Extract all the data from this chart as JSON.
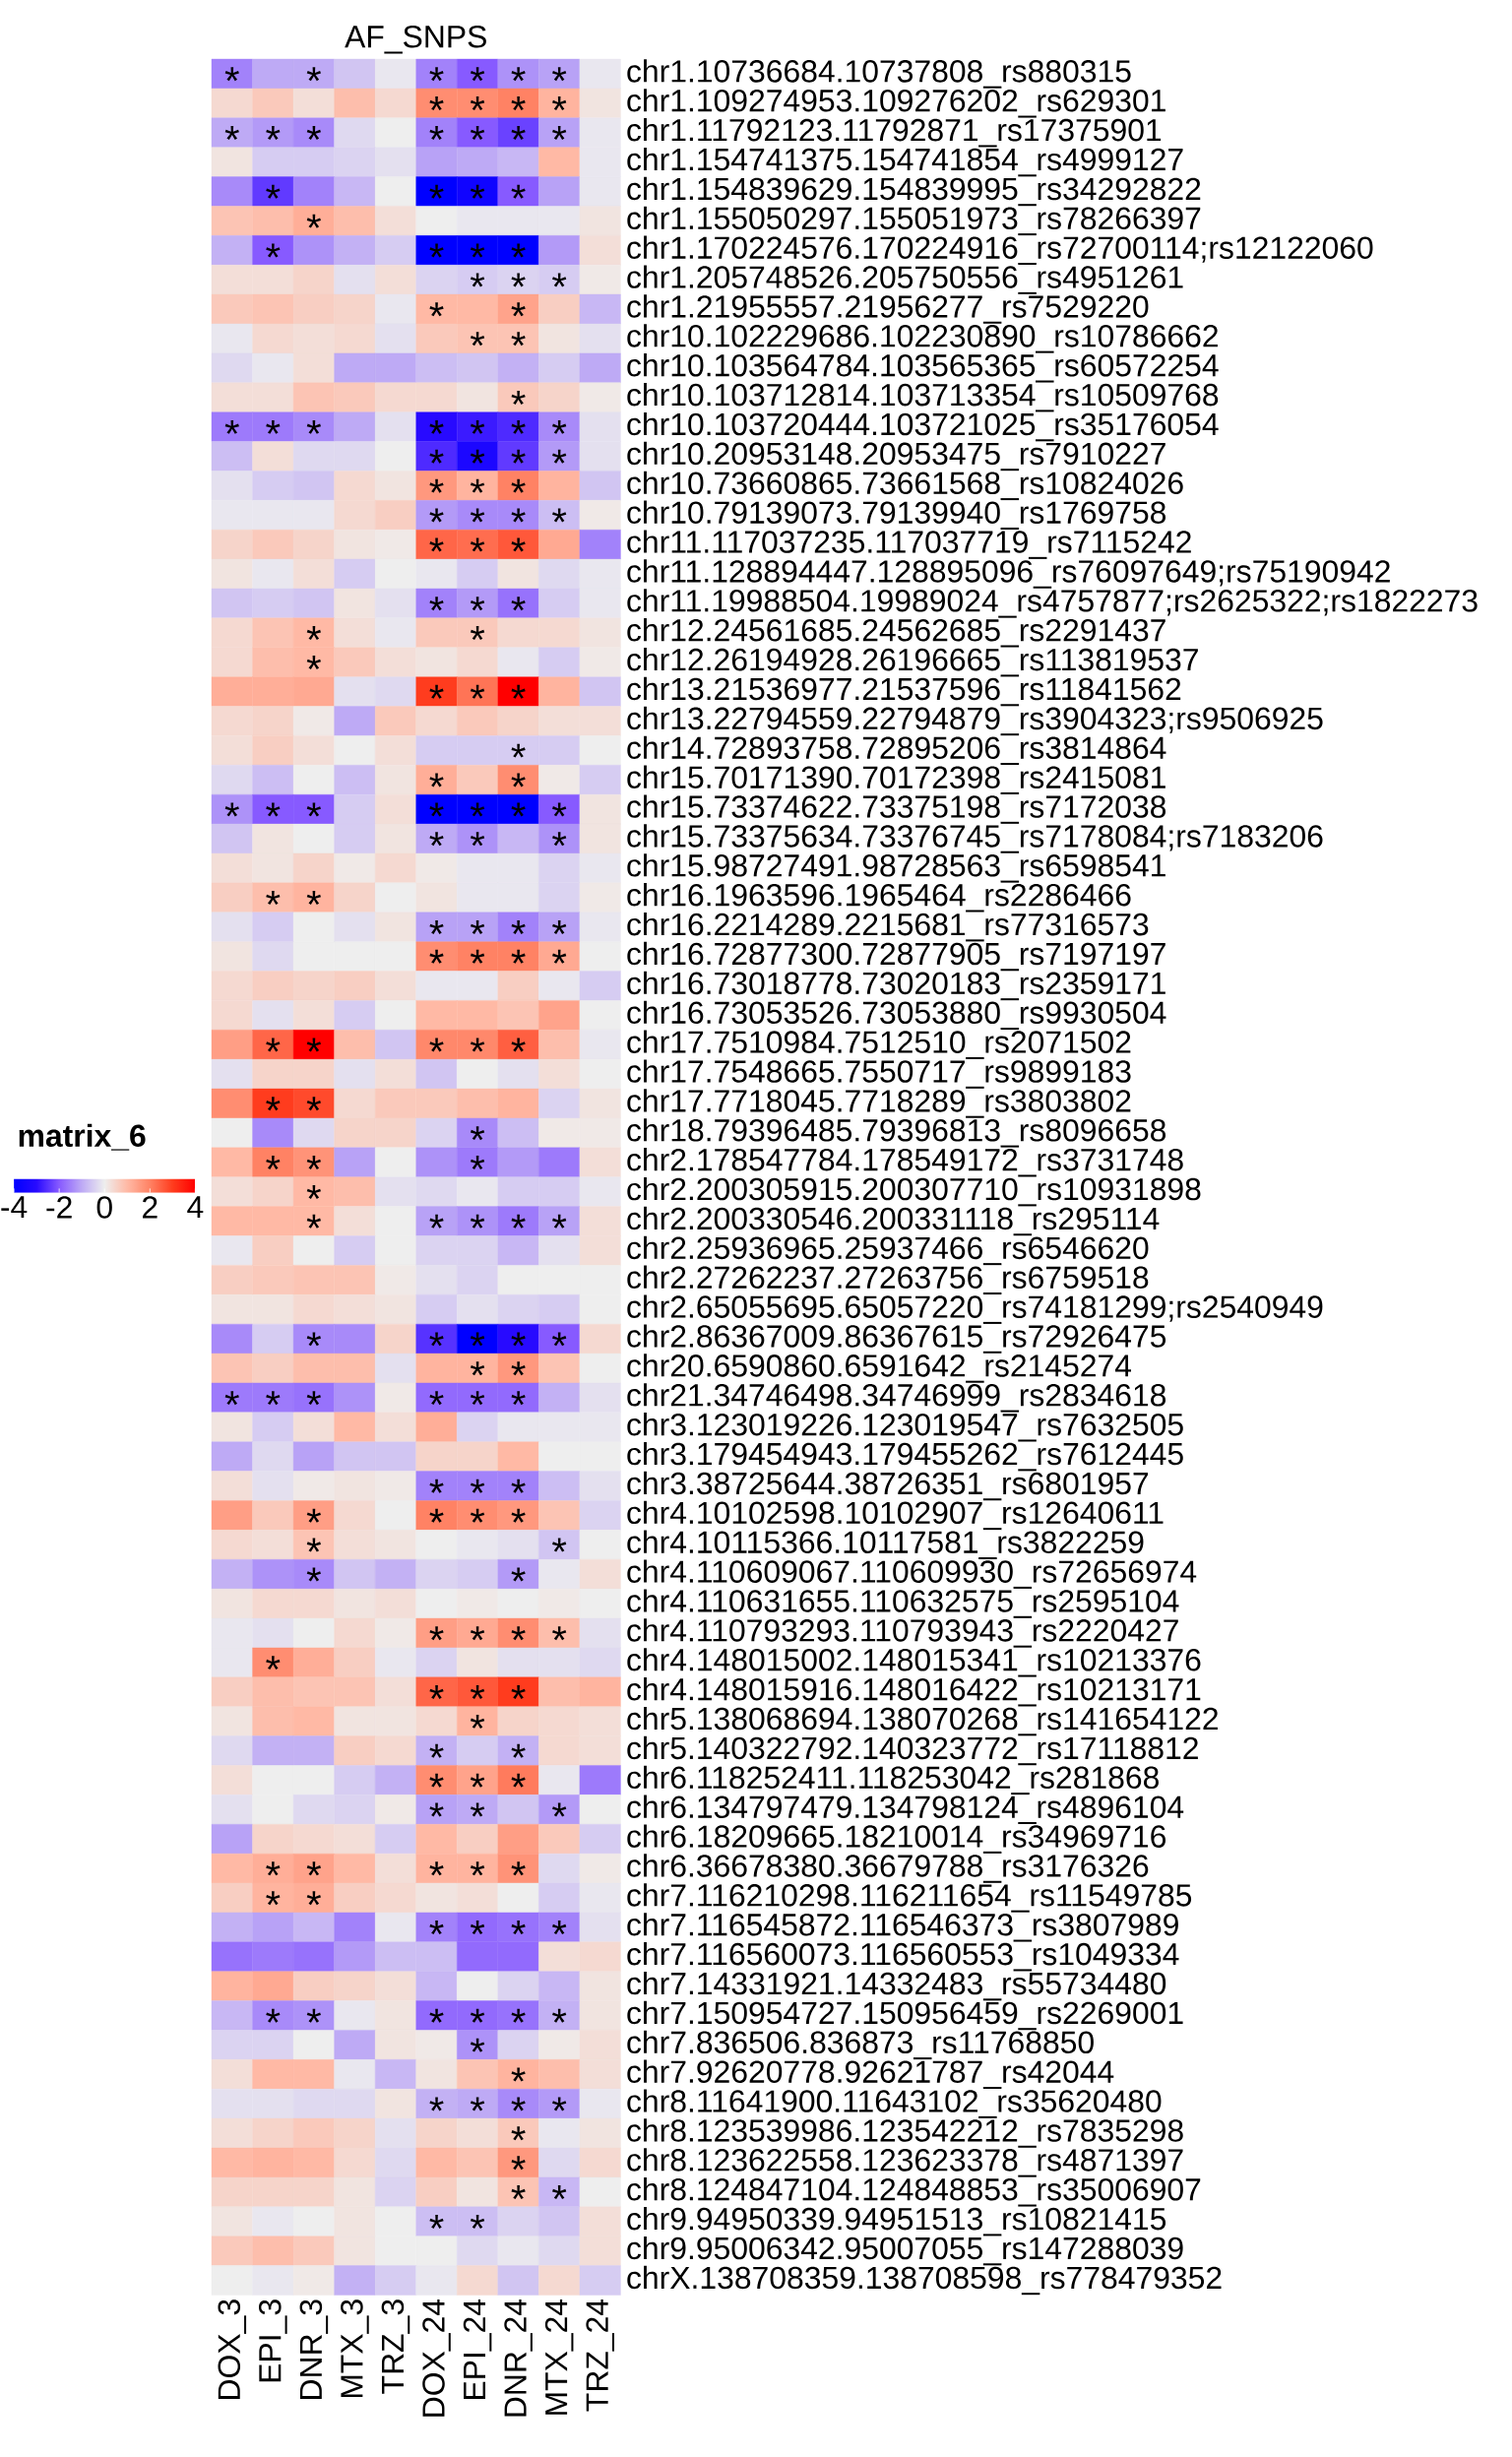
{
  "chart_data": {
    "type": "heatmap",
    "title": "AF_SNPS",
    "clabel": "matrix_6",
    "categories": [
      "DOX_3",
      "EPI_3",
      "DNR_3",
      "MTX_3",
      "TRZ_3",
      "DOX_24",
      "EPI_24",
      "DNR_24",
      "MTX_24",
      "TRZ_24"
    ],
    "y_categories": [
      "chr1.10736684.10737808_rs880315",
      "chr1.109274953.109276202_rs629301",
      "chr1.11792123.11792871_rs17375901",
      "chr1.154741375.154741854_rs4999127",
      "chr1.154839629.154839995_rs34292822",
      "chr1.155050297.155051973_rs78266397",
      "chr1.170224576.170224916_rs72700114;rs12122060",
      "chr1.205748526.205750556_rs4951261",
      "chr1.21955557.21956277_rs7529220",
      "chr10.102229686.102230890_rs10786662",
      "chr10.103564784.103565365_rs60572254",
      "chr10.103712814.103713354_rs10509768",
      "chr10.103720444.103721025_rs35176054",
      "chr10.20953148.20953475_rs7910227",
      "chr10.73660865.73661568_rs10824026",
      "chr10.79139073.79139940_rs1769758",
      "chr11.117037235.117037719_rs7115242",
      "chr11.128894447.128895096_rs76097649;rs75190942",
      "chr11.19988504.19989024_rs4757877;rs2625322;rs1822273",
      "chr12.24561685.24562685_rs2291437",
      "chr12.26194928.26196665_rs113819537",
      "chr13.21536977.21537596_rs11841562",
      "chr13.22794559.22794879_rs3904323;rs9506925",
      "chr14.72893758.72895206_rs3814864",
      "chr15.70171390.70172398_rs2415081",
      "chr15.73374622.73375198_rs7172038",
      "chr15.73375634.73376745_rs7178084;rs7183206",
      "chr15.98727491.98728563_rs6598541",
      "chr16.1963596.1965464_rs2286466",
      "chr16.2214289.2215681_rs77316573",
      "chr16.72877300.72877905_rs7197197",
      "chr16.73018778.73020183_rs2359171",
      "chr16.73053526.73053880_rs9930504",
      "chr17.7510984.7512510_rs2071502",
      "chr17.7548665.7550717_rs9899183",
      "chr17.7718045.7718289_rs3803802",
      "chr18.79396485.79396813_rs8096658",
      "chr2.178547784.178549172_rs3731748",
      "chr2.200305915.200307710_rs10931898",
      "chr2.200330546.200331118_rs295114",
      "chr2.25936965.25937466_rs6546620",
      "chr2.27262237.27263756_rs6759518",
      "chr2.65055695.65057220_rs74181299;rs2540949",
      "chr2.86367009.86367615_rs72926475",
      "chr20.6590860.6591642_rs2145274",
      "chr21.34746498.34746999_rs2834618",
      "chr3.123019226.123019547_rs7632505",
      "chr3.179454943.179455262_rs7612445",
      "chr3.38725644.38726351_rs6801957",
      "chr4.10102598.10102907_rs12640611",
      "chr4.10115366.10117581_rs3822259",
      "chr4.110609067.110609930_rs72656974",
      "chr4.110631655.110632575_rs2595104",
      "chr4.110793293.110793943_rs2220427",
      "chr4.148015002.148015341_rs10213376",
      "chr4.148015916.148016422_rs10213171",
      "chr5.138068694.138070268_rs141654122",
      "chr5.140322792.140323772_rs17118812",
      "chr6.118252411.118253042_rs281868",
      "chr6.134797479.134798124_rs4896104",
      "chr6.18209665.18210014_rs34969716",
      "chr6.36678380.36679788_rs3176326",
      "chr7.116210298.116211654_rs11549785",
      "chr7.116545872.116546373_rs3807989",
      "chr7.116560073.116560553_rs1049334",
      "chr7.14331921.14332483_rs55734480",
      "chr7.150954727.150956459_rs2269001",
      "chr7.836506.836873_rs11768850",
      "chr7.92620778.92621787_rs42044",
      "chr8.11641900.11643102_rs35620480",
      "chr8.123539986.123542212_rs7835298",
      "chr8.123622558.123623378_rs4871397",
      "chr8.124847104.124848853_rs35006907",
      "chr9.94950339.94951513_rs10821415",
      "chr9.95006342.95007055_rs147288039",
      "chrX.138708359.138708598_rs778479352"
    ],
    "cells": [
      [
        -1.5,
        -1,
        -1,
        -0.6,
        -0.1,
        -1.5,
        -2,
        -1.3,
        -1.1,
        -0.1
      ],
      [
        0.4,
        0.7,
        0.3,
        0.9,
        0.4,
        1.8,
        1.8,
        2,
        1.1,
        0.2
      ],
      [
        -1,
        -1.2,
        -1.4,
        -0.3,
        0,
        -1.5,
        -2,
        -2.3,
        -1.1,
        -0.1
      ],
      [
        0.2,
        -0.5,
        -0.5,
        -0.4,
        -0.2,
        -1.1,
        -1,
        -0.8,
        1,
        -0.1
      ],
      [
        -1.4,
        -2.4,
        -1.5,
        -0.8,
        0,
        -4,
        -3.6,
        -2,
        -1.1,
        -0.1
      ],
      [
        0.8,
        0.9,
        1.2,
        0.9,
        0.3,
        0,
        -0.1,
        -0.1,
        -0.1,
        0.2
      ],
      [
        -0.9,
        -2,
        -1.3,
        -0.9,
        -0.5,
        -4,
        -4,
        -4,
        -1.2,
        0.3
      ],
      [
        0.3,
        0.3,
        0.5,
        -0.2,
        0.3,
        -0.4,
        -0.5,
        -0.4,
        -0.5,
        0.1
      ],
      [
        0.7,
        0.8,
        0.6,
        0.5,
        -0.1,
        1,
        1,
        1.4,
        0.6,
        -0.8
      ],
      [
        -0.1,
        0.4,
        0.3,
        0.4,
        -0.2,
        0.7,
        0.8,
        0.8,
        0.2,
        -0.2
      ],
      [
        -0.3,
        -0.1,
        0.3,
        -1,
        -1,
        -0.7,
        -0.6,
        -0.9,
        -0.5,
        -1
      ],
      [
        0.3,
        0.3,
        0.8,
        0.7,
        0.4,
        0.4,
        0.2,
        0.7,
        0.5,
        0.1
      ],
      [
        -1.6,
        -1.6,
        -1.4,
        -1,
        -0.2,
        -3,
        -2.8,
        -2.6,
        -1.4,
        -0.2
      ],
      [
        -0.7,
        0.3,
        -0.3,
        -0.3,
        0,
        -2.6,
        -3.3,
        -2.4,
        -1.2,
        -0.2
      ],
      [
        -0.2,
        -0.5,
        -0.6,
        0.4,
        0.2,
        1.6,
        1.1,
        2,
        1.1,
        -0.6
      ],
      [
        -0.1,
        -0.1,
        -0.1,
        0.4,
        0.6,
        -1.2,
        -1.4,
        -1.4,
        -0.7,
        0.1
      ],
      [
        0.5,
        0.7,
        0.5,
        0.2,
        0.1,
        2.4,
        2.3,
        2.6,
        1.3,
        -1.5
      ],
      [
        0.2,
        -0.1,
        0.3,
        -0.5,
        0,
        -0.1,
        -0.5,
        0.2,
        -0.3,
        -0.1
      ],
      [
        -0.6,
        -0.5,
        -0.6,
        0.2,
        -0.2,
        -1.5,
        -1.2,
        -1.7,
        -0.5,
        -0.1
      ],
      [
        0.4,
        0.8,
        1,
        0.3,
        -0.1,
        0.7,
        0.7,
        0.4,
        0.4,
        0.2
      ],
      [
        0.4,
        0.9,
        1,
        0.7,
        0.3,
        0.2,
        0.4,
        -0.1,
        -0.5,
        0.1
      ],
      [
        1.2,
        1.2,
        1.3,
        -0.2,
        -0.3,
        3,
        2.2,
        4,
        1.1,
        -0.6
      ],
      [
        0.4,
        0.5,
        0.1,
        -1,
        0.7,
        0.4,
        0.7,
        0.5,
        0.3,
        0.3
      ],
      [
        0.3,
        0.6,
        0.3,
        0,
        0.3,
        -0.5,
        -0.5,
        -0.5,
        -0.5,
        0
      ],
      [
        -0.3,
        -0.7,
        0,
        -0.7,
        0.2,
        1.2,
        0.7,
        1.8,
        0.1,
        -0.5
      ],
      [
        -1.3,
        -2,
        -2,
        -0.5,
        0.3,
        -4,
        -4,
        -4,
        -2,
        0.2
      ],
      [
        -0.6,
        0.2,
        0,
        -0.5,
        0.2,
        -1,
        -1.3,
        -0.8,
        -1.3,
        0.2
      ],
      [
        0.3,
        0.2,
        0.5,
        0.1,
        0.4,
        0.1,
        -0.1,
        -0.1,
        -0.4,
        -0.1
      ],
      [
        0.6,
        0.9,
        1.1,
        0.5,
        0,
        0.2,
        -0.1,
        -0.1,
        -0.4,
        0.1
      ],
      [
        -0.2,
        -0.5,
        0,
        -0.2,
        0.2,
        -1.1,
        -1.1,
        -1.5,
        -1.1,
        -0.1
      ],
      [
        0.2,
        -0.3,
        0,
        0,
        0,
        1.8,
        2,
        2,
        1.3,
        0
      ],
      [
        0.4,
        0.6,
        0.5,
        0.6,
        0.3,
        -0.1,
        -0.1,
        0.6,
        -0.1,
        -0.5
      ],
      [
        0.4,
        -0.2,
        0.3,
        -0.5,
        0,
        1,
        1,
        0.8,
        1.4,
        0
      ],
      [
        1.5,
        2.4,
        4,
        0.9,
        -0.6,
        1.9,
        1.9,
        2.5,
        0.9,
        -0.1
      ],
      [
        -0.2,
        0.5,
        0.5,
        -0.2,
        0.3,
        -0.6,
        0,
        -0.2,
        0.3,
        0
      ],
      [
        1.8,
        3,
        2.8,
        0.4,
        0.7,
        0.7,
        0.9,
        1.1,
        -0.4,
        0.2
      ],
      [
        0,
        -1.4,
        -0.3,
        0.5,
        0.5,
        -0.4,
        -1.4,
        -0.7,
        0.1,
        0.1
      ],
      [
        1,
        2,
        1.7,
        -1.1,
        0,
        -1.3,
        -1.6,
        -1.2,
        -1.6,
        0.3
      ],
      [
        0.3,
        0.5,
        1,
        0.9,
        -0.2,
        -0.3,
        -0.1,
        -0.5,
        -0.5,
        -0.1
      ],
      [
        1,
        1,
        1,
        0.3,
        0,
        -1.1,
        -1.3,
        -1.6,
        -1.1,
        0.3
      ],
      [
        -0.1,
        0.6,
        0,
        -0.5,
        0,
        -0.4,
        -0.4,
        -0.8,
        -0.2,
        0.3
      ],
      [
        0.6,
        0.7,
        0.8,
        0.8,
        0.1,
        -0.2,
        -0.4,
        0,
        0,
        0
      ],
      [
        0.2,
        0.2,
        0.4,
        0.3,
        0.2,
        -0.5,
        -0.2,
        -0.4,
        -0.5,
        0
      ],
      [
        -1.4,
        -0.5,
        -1.4,
        -1.4,
        0.5,
        -2.5,
        -4,
        -3,
        -2,
        0.4
      ],
      [
        0.8,
        0.6,
        0.9,
        0.9,
        -0.2,
        1.1,
        1.1,
        1.6,
        0.8,
        0
      ],
      [
        -1.6,
        -1.6,
        -1.7,
        -1.3,
        0.1,
        -1.8,
        -1.8,
        -1.8,
        -0.9,
        -0.2
      ],
      [
        0.2,
        -0.5,
        0.3,
        1,
        0.3,
        1.2,
        -0.4,
        -0.1,
        -0.1,
        -0.1
      ],
      [
        -1,
        -0.3,
        -1.1,
        -0.6,
        -0.6,
        0.5,
        0.5,
        1,
        0,
        0
      ],
      [
        0.3,
        -0.2,
        0.1,
        0.2,
        0.1,
        -1.5,
        -1.5,
        -1.5,
        -0.7,
        -0.2
      ],
      [
        1.5,
        0.7,
        1.5,
        0.4,
        0,
        2,
        1.8,
        1.6,
        0.8,
        -0.4
      ],
      [
        0.4,
        0.3,
        0.8,
        0.3,
        0.2,
        0,
        -0.1,
        -0.2,
        -0.6,
        0
      ],
      [
        -0.9,
        -1.3,
        -1.4,
        -0.6,
        -0.9,
        -0.4,
        -0.5,
        -1.2,
        -0.1,
        0.3
      ],
      [
        0.2,
        0.4,
        0.4,
        0.2,
        0.3,
        0,
        0.1,
        0,
        0.1,
        0
      ],
      [
        -0.1,
        -0.2,
        0,
        0.4,
        0.1,
        1.5,
        1.3,
        1.8,
        0.9,
        -0.2
      ],
      [
        -0.1,
        1.8,
        1.2,
        0.6,
        -0.1,
        -0.4,
        0.2,
        -0.2,
        -0.2,
        -0.3
      ],
      [
        0.6,
        0.9,
        0.8,
        0.8,
        0.3,
        2.4,
        2.6,
        3,
        0.9,
        1.1
      ],
      [
        0.2,
        0.9,
        1,
        0.2,
        0.2,
        0.4,
        1.1,
        0.5,
        0.4,
        0.3
      ],
      [
        -0.3,
        -0.9,
        -0.9,
        0.6,
        0.4,
        -0.9,
        -0.5,
        -0.9,
        0.4,
        0.3
      ],
      [
        0.3,
        0,
        0,
        -0.5,
        -0.9,
        1.8,
        1.4,
        2.1,
        -0.1,
        -1.6
      ],
      [
        -0.2,
        0,
        -0.3,
        -0.4,
        0.1,
        -1.1,
        -1,
        -0.6,
        -1.2,
        0
      ],
      [
        -1.1,
        0.5,
        0.4,
        0.3,
        -0.5,
        1,
        0.6,
        1.5,
        0.7,
        -0.5
      ],
      [
        1,
        1.2,
        1.4,
        1,
        0.3,
        1.1,
        1.1,
        1.7,
        -0.3,
        0.1
      ],
      [
        0.6,
        1.1,
        1.2,
        0.6,
        0.4,
        0.2,
        0.3,
        0,
        -0.5,
        -0.1
      ],
      [
        -0.9,
        -1.1,
        -0.8,
        -1.5,
        -0.1,
        -1.5,
        -1.8,
        -1.7,
        -1.5,
        -0.2
      ],
      [
        -1.7,
        -1.6,
        -1.7,
        -1.2,
        -0.7,
        -0.7,
        -1.8,
        -1.8,
        0.3,
        0.4
      ],
      [
        1.1,
        1.3,
        0.6,
        0.5,
        0.3,
        -0.8,
        0,
        -0.4,
        -0.8,
        0.2
      ],
      [
        -0.8,
        -1.4,
        -1.3,
        -0.1,
        0.2,
        -1.8,
        -1.8,
        -1.7,
        -0.9,
        0.2
      ],
      [
        -0.4,
        -0.4,
        0,
        -1,
        0.2,
        0.1,
        -1.3,
        -0.4,
        0.1,
        0.3
      ],
      [
        0.3,
        1,
        1,
        -0.1,
        -0.8,
        0.2,
        0.8,
        1.1,
        0.9,
        0.3
      ],
      [
        -0.2,
        -0.2,
        -0.3,
        -0.3,
        0.2,
        -0.9,
        -1,
        -1.4,
        -1.2,
        -0.1
      ],
      [
        0.3,
        0.5,
        0.7,
        0.5,
        -0.2,
        0.5,
        0.3,
        0.7,
        -0.1,
        0.2
      ],
      [
        1,
        1.1,
        1,
        0.4,
        -0.3,
        1,
        0.8,
        1.6,
        -0.3,
        0.4
      ],
      [
        0.5,
        0.5,
        0.5,
        0.2,
        -0.4,
        0.6,
        0.2,
        0.8,
        -0.8,
        0
      ],
      [
        0.2,
        -0.1,
        0,
        0.2,
        0,
        -0.7,
        -0.7,
        -0.4,
        -0.6,
        0.3
      ],
      [
        0.7,
        0.9,
        0.7,
        0.2,
        0,
        0,
        -0.3,
        -0.1,
        -0.3,
        0.3
      ],
      [
        0,
        -0.1,
        0.1,
        -0.9,
        -0.5,
        -0.1,
        0.4,
        -0.6,
        0.4,
        -0.5
      ]
    ],
    "cell_labels": [
      [
        "*",
        null,
        "*",
        null,
        null,
        "*",
        "*",
        "*",
        "*",
        null
      ],
      [
        null,
        null,
        null,
        null,
        null,
        "*",
        "*",
        "*",
        "*",
        null
      ],
      [
        "*",
        "*",
        "*",
        null,
        null,
        "*",
        "*",
        "*",
        "*",
        null
      ],
      [
        null,
        null,
        null,
        null,
        null,
        null,
        null,
        null,
        null,
        null
      ],
      [
        null,
        "*",
        null,
        null,
        null,
        "*",
        "*",
        "*",
        null,
        null
      ],
      [
        null,
        null,
        "*",
        null,
        null,
        null,
        null,
        null,
        null,
        null
      ],
      [
        null,
        "*",
        null,
        null,
        null,
        "*",
        "*",
        "*",
        null,
        null
      ],
      [
        null,
        null,
        null,
        null,
        null,
        null,
        "*",
        "*",
        "*",
        null
      ],
      [
        null,
        null,
        null,
        null,
        null,
        "*",
        null,
        "*",
        null,
        null
      ],
      [
        null,
        null,
        null,
        null,
        null,
        null,
        "*",
        "*",
        null,
        null
      ],
      [
        null,
        null,
        null,
        null,
        null,
        null,
        null,
        null,
        null,
        null
      ],
      [
        null,
        null,
        null,
        null,
        null,
        null,
        null,
        "*",
        null,
        null
      ],
      [
        "*",
        "*",
        "*",
        null,
        null,
        "*",
        "*",
        "*",
        "*",
        null
      ],
      [
        null,
        null,
        null,
        null,
        null,
        "*",
        "*",
        "*",
        "*",
        null
      ],
      [
        null,
        null,
        null,
        null,
        null,
        "*",
        "*",
        "*",
        null,
        null
      ],
      [
        null,
        null,
        null,
        null,
        null,
        "*",
        "*",
        "*",
        "*",
        null
      ],
      [
        null,
        null,
        null,
        null,
        null,
        "*",
        "*",
        "*",
        null,
        null
      ],
      [
        null,
        null,
        null,
        null,
        null,
        null,
        null,
        null,
        null,
        null
      ],
      [
        null,
        null,
        null,
        null,
        null,
        "*",
        "*",
        "*",
        null,
        null
      ],
      [
        null,
        null,
        "*",
        null,
        null,
        null,
        "*",
        null,
        null,
        null
      ],
      [
        null,
        null,
        "*",
        null,
        null,
        null,
        null,
        null,
        null,
        null
      ],
      [
        null,
        null,
        null,
        null,
        null,
        "*",
        "*",
        "*",
        null,
        null
      ],
      [
        null,
        null,
        null,
        null,
        null,
        null,
        null,
        null,
        null,
        null
      ],
      [
        null,
        null,
        null,
        null,
        null,
        null,
        null,
        "*",
        null,
        null
      ],
      [
        null,
        null,
        null,
        null,
        null,
        "*",
        null,
        "*",
        null,
        null
      ],
      [
        "*",
        "*",
        "*",
        null,
        null,
        "*",
        "*",
        "*",
        "*",
        null
      ],
      [
        null,
        null,
        null,
        null,
        null,
        "*",
        "*",
        null,
        "*",
        null
      ],
      [
        null,
        null,
        null,
        null,
        null,
        null,
        null,
        null,
        null,
        null
      ],
      [
        null,
        "*",
        "*",
        null,
        null,
        null,
        null,
        null,
        null,
        null
      ],
      [
        null,
        null,
        null,
        null,
        null,
        "*",
        "*",
        "*",
        "*",
        null
      ],
      [
        null,
        null,
        null,
        null,
        null,
        "*",
        "*",
        "*",
        "*",
        null
      ],
      [
        null,
        null,
        null,
        null,
        null,
        null,
        null,
        null,
        null,
        null
      ],
      [
        null,
        null,
        null,
        null,
        null,
        null,
        null,
        null,
        null,
        null
      ],
      [
        null,
        "*",
        "*",
        null,
        null,
        "*",
        "*",
        "*",
        null,
        null
      ],
      [
        null,
        null,
        null,
        null,
        null,
        null,
        null,
        null,
        null,
        null
      ],
      [
        null,
        "*",
        "*",
        null,
        null,
        null,
        null,
        null,
        null,
        null
      ],
      [
        null,
        null,
        null,
        null,
        null,
        null,
        "*",
        null,
        null,
        null
      ],
      [
        null,
        "*",
        "*",
        null,
        null,
        null,
        "*",
        null,
        null,
        null
      ],
      [
        null,
        null,
        "*",
        null,
        null,
        null,
        null,
        null,
        null,
        null
      ],
      [
        null,
        null,
        "*",
        null,
        null,
        "*",
        "*",
        "*",
        "*",
        null
      ],
      [
        null,
        null,
        null,
        null,
        null,
        null,
        null,
        null,
        null,
        null
      ],
      [
        null,
        null,
        null,
        null,
        null,
        null,
        null,
        null,
        null,
        null
      ],
      [
        null,
        null,
        null,
        null,
        null,
        null,
        null,
        null,
        null,
        null
      ],
      [
        null,
        null,
        "*",
        null,
        null,
        "*",
        "*",
        "*",
        "*",
        null
      ],
      [
        null,
        null,
        null,
        null,
        null,
        null,
        "*",
        "*",
        null,
        null
      ],
      [
        "*",
        "*",
        "*",
        null,
        null,
        "*",
        "*",
        "*",
        null,
        null
      ],
      [
        null,
        null,
        null,
        null,
        null,
        null,
        null,
        null,
        null,
        null
      ],
      [
        null,
        null,
        null,
        null,
        null,
        null,
        null,
        null,
        null,
        null
      ],
      [
        null,
        null,
        null,
        null,
        null,
        "*",
        "*",
        "*",
        null,
        null
      ],
      [
        null,
        null,
        "*",
        null,
        null,
        "*",
        "*",
        "*",
        null,
        null
      ],
      [
        null,
        null,
        "*",
        null,
        null,
        null,
        null,
        null,
        "*",
        null
      ],
      [
        null,
        null,
        "*",
        null,
        null,
        null,
        null,
        "*",
        null,
        null
      ],
      [
        null,
        null,
        null,
        null,
        null,
        null,
        null,
        null,
        null,
        null
      ],
      [
        null,
        null,
        null,
        null,
        null,
        "*",
        "*",
        "*",
        "*",
        null
      ],
      [
        null,
        "*",
        null,
        null,
        null,
        null,
        null,
        null,
        null,
        null
      ],
      [
        null,
        null,
        null,
        null,
        null,
        "*",
        "*",
        "*",
        null,
        null
      ],
      [
        null,
        null,
        null,
        null,
        null,
        null,
        "*",
        null,
        null,
        null
      ],
      [
        null,
        null,
        null,
        null,
        null,
        "*",
        null,
        "*",
        null,
        null
      ],
      [
        null,
        null,
        null,
        null,
        null,
        "*",
        "*",
        "*",
        null,
        null
      ],
      [
        null,
        null,
        null,
        null,
        null,
        "*",
        "*",
        null,
        "*",
        null
      ],
      [
        null,
        null,
        null,
        null,
        null,
        null,
        null,
        null,
        null,
        null
      ],
      [
        null,
        "*",
        "*",
        null,
        null,
        "*",
        "*",
        "*",
        null,
        null
      ],
      [
        null,
        "*",
        "*",
        null,
        null,
        null,
        null,
        null,
        null,
        null
      ],
      [
        null,
        null,
        null,
        null,
        null,
        "*",
        "*",
        "*",
        "*",
        null
      ],
      [
        null,
        null,
        null,
        null,
        null,
        null,
        null,
        null,
        null,
        null
      ],
      [
        null,
        null,
        null,
        null,
        null,
        null,
        null,
        null,
        null,
        null
      ],
      [
        null,
        "*",
        "*",
        null,
        null,
        "*",
        "*",
        "*",
        "*",
        null
      ],
      [
        null,
        null,
        null,
        null,
        null,
        null,
        "*",
        null,
        null,
        null
      ],
      [
        null,
        null,
        null,
        null,
        null,
        null,
        null,
        "*",
        null,
        null
      ],
      [
        null,
        null,
        null,
        null,
        null,
        "*",
        "*",
        "*",
        "*",
        null
      ],
      [
        null,
        null,
        null,
        null,
        null,
        null,
        null,
        "*",
        null,
        null
      ],
      [
        null,
        null,
        null,
        null,
        null,
        null,
        null,
        "*",
        null,
        null
      ],
      [
        null,
        null,
        null,
        null,
        null,
        null,
        null,
        "*",
        "*",
        null
      ],
      [
        null,
        null,
        null,
        null,
        null,
        "*",
        "*",
        null,
        null,
        null
      ],
      [
        null,
        null,
        null,
        null,
        null,
        null,
        null,
        null,
        null,
        null
      ],
      [
        null,
        null,
        null,
        null,
        null,
        null,
        null,
        null,
        null,
        null
      ]
    ],
    "clim": [
      -4,
      4
    ],
    "cticks": [
      -4,
      -2,
      0,
      2,
      4
    ]
  }
}
